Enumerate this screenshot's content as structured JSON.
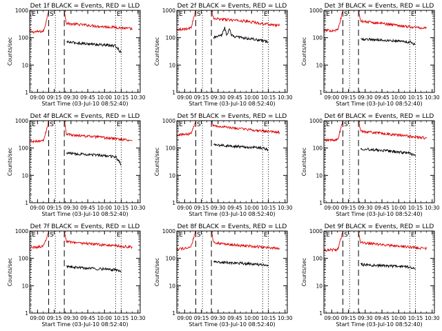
{
  "chart_data": [
    {
      "type": "line",
      "title": "Det 1f BLACK = Events, RED = LLD",
      "xlabel": "Start Time (03-Jul-10 08:52:40)",
      "ylabel": "Counts/sec",
      "ylim": [
        1,
        1000
      ],
      "yscale": "log",
      "xlim": [
        "08:53",
        "10:32"
      ],
      "yticks": [
        "1",
        "10",
        "100",
        "1000"
      ],
      "xticks": [
        "09:00",
        "09:15",
        "09:30",
        "09:45",
        "10:00",
        "10:15",
        "10:30"
      ],
      "markers": [
        {
          "label": "E",
          "type": "dotted",
          "x": "08:54"
        },
        {
          "label": "S",
          "type": "dashed",
          "x": "09:10"
        },
        {
          "label": "",
          "type": "dotted",
          "x": "09:16"
        },
        {
          "label": "",
          "type": "dashed",
          "x": "09:24"
        },
        {
          "label": "E",
          "type": "dotted",
          "x": "10:10"
        },
        {
          "label": "",
          "type": "dotted",
          "x": "10:15"
        }
      ],
      "series": [
        {
          "color": "#dd0000",
          "x": [
            "08:53",
            "09:05",
            "09:06",
            "09:10",
            "09:24",
            "09:26",
            "09:40",
            "09:55",
            "10:10",
            "10:25"
          ],
          "y": [
            160,
            170,
            200,
            1000,
            1000,
            330,
            300,
            260,
            240,
            210
          ]
        },
        {
          "color": "#000000",
          "x": [
            "09:26",
            "09:40",
            "09:55",
            "10:10",
            "10:15"
          ],
          "y": [
            70,
            62,
            56,
            50,
            28
          ]
        }
      ]
    },
    {
      "type": "line",
      "title": "Det 2f BLACK = Events, RED = LLD",
      "xlabel": "Start Time (03-Jul-10 08:52:40)",
      "ylabel": "Counts/sec",
      "ylim": [
        1,
        1000
      ],
      "yscale": "log",
      "xlim": [
        "08:53",
        "10:32"
      ],
      "yticks": [
        "1",
        "10",
        "100",
        "1000"
      ],
      "xticks": [
        "09:00",
        "09:15",
        "09:30",
        "09:45",
        "10:00",
        "10:15",
        "10:30"
      ],
      "markers": [
        {
          "label": "E",
          "type": "dotted",
          "x": "08:54"
        },
        {
          "label": "S",
          "type": "dashed",
          "x": "09:10"
        },
        {
          "label": "",
          "type": "dotted",
          "x": "09:16"
        },
        {
          "label": "",
          "type": "dashed",
          "x": "09:24"
        },
        {
          "label": "E",
          "type": "dotted",
          "x": "10:10"
        },
        {
          "label": "",
          "type": "dotted",
          "x": "10:15"
        }
      ],
      "series": [
        {
          "color": "#dd0000",
          "x": [
            "08:53",
            "09:05",
            "09:06",
            "09:10",
            "09:24",
            "09:26",
            "09:40",
            "09:55",
            "10:10",
            "10:25"
          ],
          "y": [
            200,
            220,
            260,
            1000,
            1000,
            500,
            450,
            400,
            330,
            280
          ]
        },
        {
          "color": "#000000",
          "x": [
            "09:26",
            "09:33",
            "09:36",
            "09:38",
            "09:40",
            "09:42",
            "09:45",
            "10:00",
            "10:15"
          ],
          "y": [
            100,
            120,
            230,
            120,
            200,
            130,
            110,
            90,
            70
          ]
        }
      ]
    },
    {
      "type": "line",
      "title": "Det 3f BLACK = Events, RED = LLD",
      "xlabel": "Start Time (03-Jul-10 08:52:40)",
      "ylabel": "Counts/sec",
      "ylim": [
        1,
        1000
      ],
      "yscale": "log",
      "xlim": [
        "08:53",
        "10:32"
      ],
      "yticks": [
        "1",
        "10",
        "100",
        "1000"
      ],
      "xticks": [
        "09:00",
        "09:15",
        "09:30",
        "09:45",
        "10:00",
        "10:15",
        "10:30"
      ],
      "markers": [
        {
          "label": "E",
          "type": "dotted",
          "x": "08:54"
        },
        {
          "label": "S",
          "type": "dashed",
          "x": "09:10"
        },
        {
          "label": "",
          "type": "dotted",
          "x": "09:16"
        },
        {
          "label": "",
          "type": "dashed",
          "x": "09:24"
        },
        {
          "label": "E",
          "type": "dotted",
          "x": "10:10"
        },
        {
          "label": "",
          "type": "dotted",
          "x": "10:15"
        }
      ],
      "series": [
        {
          "color": "#dd0000",
          "x": [
            "08:53",
            "09:05",
            "09:06",
            "09:10",
            "09:24",
            "09:26",
            "09:40",
            "09:55",
            "10:10",
            "10:25"
          ],
          "y": [
            180,
            190,
            220,
            1000,
            1000,
            400,
            350,
            300,
            250,
            220
          ]
        },
        {
          "color": "#000000",
          "x": [
            "09:26",
            "09:40",
            "09:55",
            "10:10",
            "10:15"
          ],
          "y": [
            90,
            85,
            78,
            70,
            55
          ]
        }
      ]
    },
    {
      "type": "line",
      "title": "Det 4f BLACK = Events, RED = LLD",
      "xlabel": "Start Time (03-Jul-10 08:52:40)",
      "ylabel": "Counts/sec",
      "ylim": [
        1,
        1000
      ],
      "yscale": "log",
      "xlim": [
        "08:53",
        "10:32"
      ],
      "yticks": [
        "1",
        "10",
        "100",
        "1000"
      ],
      "xticks": [
        "09:00",
        "09:15",
        "09:30",
        "09:45",
        "10:00",
        "10:15",
        "10:30"
      ],
      "markers": [
        {
          "label": "E",
          "type": "dotted",
          "x": "08:54"
        },
        {
          "label": "S",
          "type": "dashed",
          "x": "09:10"
        },
        {
          "label": "",
          "type": "dotted",
          "x": "09:16"
        },
        {
          "label": "",
          "type": "dashed",
          "x": "09:24"
        },
        {
          "label": "E",
          "type": "dotted",
          "x": "10:10"
        },
        {
          "label": "",
          "type": "dotted",
          "x": "10:15"
        }
      ],
      "series": [
        {
          "color": "#dd0000",
          "x": [
            "08:53",
            "09:05",
            "09:06",
            "09:10",
            "09:24",
            "09:26",
            "09:40",
            "09:55",
            "10:10",
            "10:25"
          ],
          "y": [
            170,
            180,
            220,
            1000,
            1000,
            320,
            280,
            250,
            220,
            190
          ]
        },
        {
          "color": "#000000",
          "x": [
            "09:26",
            "09:40",
            "09:55",
            "10:10",
            "10:15"
          ],
          "y": [
            65,
            60,
            55,
            48,
            25
          ]
        }
      ]
    },
    {
      "type": "line",
      "title": "Det 5f BLACK = Events, RED = LLD",
      "xlabel": "Start Time (03-Jul-10 08:52:40)",
      "ylabel": "Counts/sec",
      "ylim": [
        1,
        1000
      ],
      "yscale": "log",
      "xlim": [
        "08:53",
        "10:32"
      ],
      "yticks": [
        "1",
        "10",
        "100",
        "1000"
      ],
      "xticks": [
        "09:00",
        "09:15",
        "09:30",
        "09:45",
        "10:00",
        "10:15",
        "10:30"
      ],
      "markers": [
        {
          "label": "E",
          "type": "dotted",
          "x": "08:54"
        },
        {
          "label": "S",
          "type": "dashed",
          "x": "09:10"
        },
        {
          "label": "",
          "type": "dotted",
          "x": "09:16"
        },
        {
          "label": "",
          "type": "dashed",
          "x": "09:24"
        },
        {
          "label": "E",
          "type": "dotted",
          "x": "10:10"
        },
        {
          "label": "",
          "type": "dotted",
          "x": "10:15"
        }
      ],
      "series": [
        {
          "color": "#dd0000",
          "x": [
            "08:53",
            "09:05",
            "09:06",
            "09:10",
            "09:24",
            "09:26",
            "09:40",
            "09:55",
            "10:10",
            "10:25"
          ],
          "y": [
            300,
            330,
            380,
            1000,
            1000,
            650,
            560,
            480,
            420,
            370
          ]
        },
        {
          "color": "#000000",
          "x": [
            "09:26",
            "09:40",
            "09:55",
            "10:10",
            "10:15"
          ],
          "y": [
            130,
            120,
            110,
            100,
            85
          ]
        }
      ]
    },
    {
      "type": "line",
      "title": "Det 6f BLACK = Events, RED = LLD",
      "xlabel": "Start Time (03-Jul-10 08:52:40)",
      "ylabel": "Counts/sec",
      "ylim": [
        1,
        1000
      ],
      "yscale": "log",
      "xlim": [
        "08:53",
        "10:32"
      ],
      "yticks": [
        "1",
        "10",
        "100",
        "1000"
      ],
      "xticks": [
        "09:00",
        "09:15",
        "09:30",
        "09:45",
        "10:00",
        "10:15",
        "10:30"
      ],
      "markers": [
        {
          "label": "E",
          "type": "dotted",
          "x": "08:54"
        },
        {
          "label": "S",
          "type": "dashed",
          "x": "09:10"
        },
        {
          "label": "",
          "type": "dotted",
          "x": "09:16"
        },
        {
          "label": "",
          "type": "dashed",
          "x": "09:24"
        },
        {
          "label": "E",
          "type": "dotted",
          "x": "10:10"
        },
        {
          "label": "",
          "type": "dotted",
          "x": "10:15"
        }
      ],
      "series": [
        {
          "color": "#dd0000",
          "x": [
            "08:53",
            "09:05",
            "09:06",
            "09:10",
            "09:24",
            "09:26",
            "09:40",
            "09:55",
            "10:10",
            "10:25"
          ],
          "y": [
            190,
            200,
            240,
            1000,
            1000,
            420,
            360,
            310,
            270,
            230
          ]
        },
        {
          "color": "#000000",
          "x": [
            "09:26",
            "09:40",
            "09:55",
            "10:10",
            "10:15"
          ],
          "y": [
            95,
            85,
            75,
            65,
            50
          ]
        }
      ]
    },
    {
      "type": "line",
      "title": "Det 7f BLACK = Events, RED = LLD",
      "xlabel": "Start Time (03-Jul-10 08:52:40)",
      "ylabel": "Counts/sec",
      "ylim": [
        1,
        1000
      ],
      "yscale": "log",
      "xlim": [
        "08:53",
        "10:32"
      ],
      "yticks": [
        "1",
        "10",
        "100",
        "1000"
      ],
      "xticks": [
        "09:00",
        "09:15",
        "09:30",
        "09:45",
        "10:00",
        "10:15",
        "10:30"
      ],
      "markers": [
        {
          "label": "E",
          "type": "dotted",
          "x": "08:54"
        },
        {
          "label": "S",
          "type": "dashed",
          "x": "09:10"
        },
        {
          "label": "",
          "type": "dotted",
          "x": "09:16"
        },
        {
          "label": "",
          "type": "dashed",
          "x": "09:24"
        },
        {
          "label": "E",
          "type": "dotted",
          "x": "10:10"
        },
        {
          "label": "",
          "type": "dotted",
          "x": "10:15"
        }
      ],
      "series": [
        {
          "color": "#dd0000",
          "x": [
            "08:53",
            "09:05",
            "09:06",
            "09:10",
            "09:24",
            "09:26",
            "09:40",
            "09:55",
            "10:10",
            "10:25"
          ],
          "y": [
            250,
            270,
            320,
            1000,
            1000,
            420,
            360,
            320,
            290,
            260
          ]
        },
        {
          "color": "#000000",
          "x": [
            "09:26",
            "09:40",
            "09:55",
            "10:10",
            "10:15"
          ],
          "y": [
            50,
            45,
            42,
            38,
            32
          ]
        }
      ]
    },
    {
      "type": "line",
      "title": "Det 8f BLACK = Events, RED = LLD",
      "xlabel": "Start Time (03-Jul-10 08:52:40)",
      "ylabel": "Counts/sec",
      "ylim": [
        1,
        1000
      ],
      "yscale": "log",
      "xlim": [
        "08:53",
        "10:32"
      ],
      "yticks": [
        "1",
        "10",
        "100",
        "1000"
      ],
      "xticks": [
        "09:00",
        "09:15",
        "09:30",
        "09:45",
        "10:00",
        "10:15",
        "10:30"
      ],
      "markers": [
        {
          "label": "E",
          "type": "dotted",
          "x": "08:54"
        },
        {
          "label": "S",
          "type": "dashed",
          "x": "09:10"
        },
        {
          "label": "",
          "type": "dotted",
          "x": "09:16"
        },
        {
          "label": "",
          "type": "dashed",
          "x": "09:24"
        },
        {
          "label": "E",
          "type": "dotted",
          "x": "10:10"
        },
        {
          "label": "",
          "type": "dotted",
          "x": "10:15"
        }
      ],
      "series": [
        {
          "color": "#dd0000",
          "x": [
            "08:53",
            "09:05",
            "09:06",
            "09:10",
            "09:24",
            "09:26",
            "09:40",
            "09:55",
            "10:10",
            "10:25"
          ],
          "y": [
            220,
            240,
            290,
            1000,
            1000,
            380,
            320,
            290,
            260,
            230
          ]
        },
        {
          "color": "#000000",
          "x": [
            "09:26",
            "09:40",
            "09:55",
            "10:10",
            "10:15"
          ],
          "y": [
            75,
            70,
            65,
            58,
            52
          ]
        }
      ]
    },
    {
      "type": "line",
      "title": "Det 9f BLACK = Events, RED = LLD",
      "xlabel": "Start Time (03-Jul-10 08:52:40)",
      "ylabel": "Counts/sec",
      "ylim": [
        1,
        1000
      ],
      "yscale": "log",
      "xlim": [
        "08:53",
        "10:32"
      ],
      "yticks": [
        "1",
        "10",
        "100",
        "1000"
      ],
      "xticks": [
        "09:00",
        "09:15",
        "09:30",
        "09:45",
        "10:00",
        "10:15",
        "10:30"
      ],
      "markers": [
        {
          "label": "E",
          "type": "dotted",
          "x": "08:54"
        },
        {
          "label": "S",
          "type": "dashed",
          "x": "09:10"
        },
        {
          "label": "",
          "type": "dotted",
          "x": "09:16"
        },
        {
          "label": "",
          "type": "dashed",
          "x": "09:24"
        },
        {
          "label": "E",
          "type": "dotted",
          "x": "10:10"
        },
        {
          "label": "",
          "type": "dotted",
          "x": "10:15"
        }
      ],
      "series": [
        {
          "color": "#dd0000",
          "x": [
            "08:53",
            "09:05",
            "09:06",
            "09:10",
            "09:24",
            "09:26",
            "09:40",
            "09:55",
            "10:10",
            "10:25"
          ],
          "y": [
            200,
            210,
            250,
            1000,
            1000,
            380,
            330,
            290,
            260,
            230
          ]
        },
        {
          "color": "#000000",
          "x": [
            "09:26",
            "09:40",
            "09:55",
            "10:10",
            "10:15"
          ],
          "y": [
            60,
            55,
            52,
            48,
            42
          ]
        }
      ]
    }
  ]
}
